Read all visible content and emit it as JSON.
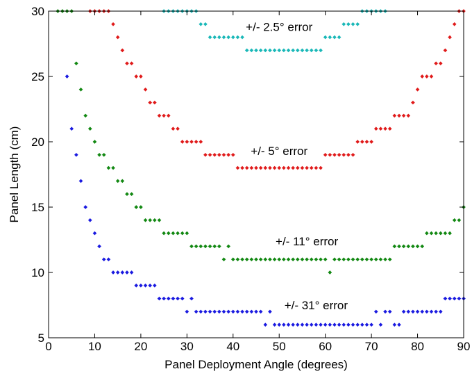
{
  "chart_data": {
    "type": "scatter",
    "title": "",
    "xlabel": "Panel Deployment Angle (degrees)",
    "ylabel": "Panel Length (cm)",
    "xlim": [
      0,
      90
    ],
    "ylim": [
      5,
      30
    ],
    "xticks": [
      0,
      10,
      20,
      30,
      40,
      50,
      60,
      70,
      80,
      90
    ],
    "yticks": [
      5,
      10,
      15,
      20,
      25,
      30
    ],
    "grid": false,
    "legend": "none",
    "annotations": [
      {
        "text": "+/- 2.5° error",
        "x": 50,
        "y": 28.8
      },
      {
        "text": "+/- 5° error",
        "x": 50,
        "y": 19.3
      },
      {
        "text": "+/- 11° error",
        "x": 56,
        "y": 12.4
      },
      {
        "text": "+/- 31° error",
        "x": 58,
        "y": 7.5
      }
    ],
    "series": [
      {
        "color": "#1ab8b8",
        "x": [
          25,
          26,
          27,
          28,
          29,
          30,
          31,
          32,
          33,
          34,
          35,
          36,
          37,
          38,
          39,
          40,
          41,
          42,
          43,
          44,
          45,
          46,
          47,
          48,
          49,
          50,
          51,
          52,
          53,
          54,
          55,
          56,
          57,
          58,
          59,
          60,
          61,
          62,
          63,
          64,
          65,
          66,
          67,
          68,
          69,
          70,
          71,
          72,
          73
        ],
        "y": [
          30,
          30,
          30,
          30,
          30,
          30,
          30,
          30,
          29,
          29,
          28,
          28,
          28,
          28,
          28,
          28,
          28,
          28,
          27,
          27,
          27,
          27,
          27,
          27,
          27,
          27,
          27,
          27,
          27,
          27,
          27,
          27,
          27,
          27,
          27,
          28,
          28,
          28,
          28,
          29,
          29,
          29,
          29,
          30,
          30,
          30,
          30,
          30,
          30
        ]
      },
      {
        "color": "#e01a1a",
        "x": [
          9,
          10,
          11,
          12,
          13,
          14,
          15,
          16,
          17,
          18,
          19,
          20,
          21,
          22,
          23,
          24,
          25,
          26,
          27,
          28,
          29,
          30,
          31,
          32,
          33,
          34,
          35,
          36,
          37,
          38,
          39,
          40,
          41,
          42,
          43,
          44,
          45,
          46,
          47,
          48,
          49,
          50,
          51,
          52,
          53,
          54,
          55,
          56,
          57,
          58,
          59,
          60,
          61,
          62,
          63,
          64,
          65,
          66,
          67,
          68,
          69,
          70,
          71,
          72,
          73,
          74,
          75,
          76,
          77,
          78,
          79,
          80,
          81,
          82,
          83,
          84,
          85,
          86,
          87,
          88,
          89,
          90
        ],
        "y": [
          30,
          30,
          30,
          30,
          30,
          29,
          28,
          27,
          26,
          26,
          25,
          25,
          24,
          23,
          23,
          22,
          22,
          22,
          21,
          21,
          20,
          20,
          20,
          20,
          20,
          19,
          19,
          19,
          19,
          19,
          19,
          19,
          18,
          18,
          18,
          18,
          18,
          18,
          18,
          18,
          18,
          18,
          18,
          18,
          18,
          18,
          18,
          18,
          18,
          18,
          18,
          19,
          19,
          19,
          19,
          19,
          19,
          19,
          20,
          20,
          20,
          20,
          21,
          21,
          21,
          21,
          22,
          22,
          22,
          22,
          23,
          24,
          25,
          25,
          25,
          26,
          26,
          27,
          28,
          29,
          30,
          30
        ]
      },
      {
        "color": "#128812",
        "x": [
          2,
          3,
          4,
          5,
          6,
          7,
          8,
          9,
          10,
          11,
          12,
          13,
          14,
          15,
          16,
          17,
          18,
          19,
          20,
          21,
          22,
          23,
          24,
          25,
          26,
          27,
          28,
          29,
          30,
          31,
          32,
          33,
          34,
          35,
          36,
          37,
          38,
          39,
          40,
          41,
          42,
          43,
          44,
          45,
          46,
          47,
          48,
          49,
          50,
          51,
          52,
          53,
          54,
          55,
          56,
          57,
          58,
          59,
          60,
          61,
          62,
          63,
          64,
          65,
          66,
          67,
          68,
          69,
          70,
          71,
          72,
          73,
          74,
          75,
          76,
          77,
          78,
          79,
          80,
          81,
          82,
          83,
          84,
          85,
          86,
          87,
          88,
          89,
          90
        ],
        "y": [
          30,
          30,
          30,
          30,
          26,
          24,
          22,
          21,
          20,
          19,
          19,
          18,
          18,
          17,
          17,
          16,
          16,
          15,
          15,
          14,
          14,
          14,
          14,
          13,
          13,
          13,
          13,
          13,
          13,
          12,
          12,
          12,
          12,
          12,
          12,
          12,
          11,
          12,
          11,
          11,
          11,
          11,
          11,
          11,
          11,
          11,
          11,
          11,
          11,
          11,
          11,
          11,
          11,
          11,
          11,
          11,
          11,
          11,
          11,
          10,
          11,
          11,
          11,
          11,
          11,
          11,
          11,
          11,
          11,
          11,
          11,
          11,
          11,
          12,
          12,
          12,
          12,
          12,
          12,
          12,
          13,
          13,
          13,
          13,
          13,
          13,
          14,
          14,
          15
        ]
      },
      {
        "color": "#1a1ae0",
        "x": [
          4,
          5,
          6,
          7,
          8,
          9,
          10,
          11,
          12,
          13,
          14,
          15,
          16,
          17,
          18,
          19,
          20,
          21,
          22,
          23,
          24,
          25,
          26,
          27,
          28,
          29,
          30,
          31,
          32,
          33,
          34,
          35,
          36,
          37,
          38,
          39,
          40,
          41,
          42,
          43,
          44,
          45,
          46,
          47,
          48,
          49,
          50,
          51,
          52,
          53,
          54,
          55,
          56,
          57,
          58,
          59,
          60,
          61,
          62,
          63,
          64,
          65,
          66,
          67,
          68,
          69,
          70,
          71,
          72,
          73,
          74,
          75,
          76,
          77,
          78,
          79,
          80,
          81,
          82,
          83,
          84,
          85,
          86,
          87,
          88,
          89,
          90
        ],
        "y": [
          25,
          21,
          19,
          17,
          15,
          14,
          13,
          12,
          11,
          11,
          10,
          10,
          10,
          10,
          10,
          9,
          9,
          9,
          9,
          9,
          8,
          8,
          8,
          8,
          8,
          8,
          7,
          8,
          7,
          7,
          7,
          7,
          7,
          7,
          7,
          7,
          7,
          7,
          7,
          7,
          7,
          7,
          7,
          6,
          7,
          6,
          6,
          6,
          6,
          6,
          6,
          6,
          6,
          6,
          6,
          6,
          6,
          6,
          6,
          6,
          6,
          6,
          6,
          6,
          6,
          6,
          6,
          7,
          6,
          7,
          7,
          6,
          6,
          7,
          7,
          7,
          7,
          7,
          7,
          7,
          7,
          7,
          8,
          8,
          8,
          8,
          8
        ]
      }
    ]
  }
}
